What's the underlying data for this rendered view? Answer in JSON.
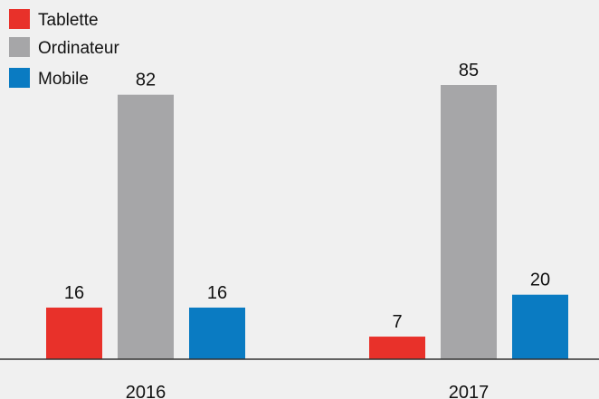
{
  "chart_data": {
    "type": "bar",
    "categories": [
      "2016",
      "2017"
    ],
    "series": [
      {
        "name": "Tablette",
        "color": "#e8312a",
        "values": [
          16,
          7
        ]
      },
      {
        "name": "Ordinateur",
        "color": "#a6a6a8",
        "values": [
          82,
          85
        ]
      },
      {
        "name": "Mobile",
        "color": "#0a7bc2",
        "values": [
          16,
          20
        ]
      }
    ],
    "legend": "top-left"
  }
}
